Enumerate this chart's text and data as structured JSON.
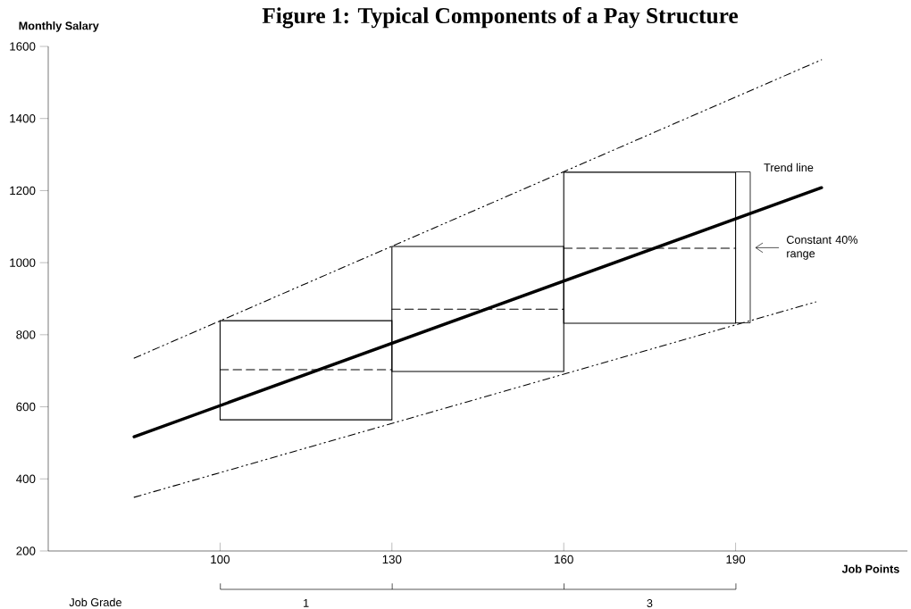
{
  "chart_data": {
    "type": "bar",
    "title": "Figure 1: Typical Components of a Pay Structure",
    "xlabel": "Job Points",
    "ylabel": "Monthly Salary",
    "xlim": [
      70,
      220
    ],
    "ylim": [
      200,
      1600
    ],
    "xticks": [
      100,
      130,
      160,
      190
    ],
    "yticks": [
      200,
      400,
      600,
      800,
      1000,
      1200,
      1400,
      1600
    ],
    "series": [
      {
        "color": "#000000",
        "x": [
          115,
          145,
          175
        ],
        "base": [
          564,
          698,
          832
        ],
        "values": [
          275,
          347,
          419
        ]
      },
      {
        "type": "line",
        "line_style": "dashed",
        "color": "#000000",
        "x": [
          100,
          130
        ],
        "values": [
          703,
          703
        ]
      },
      {
        "type": "line",
        "line_style": "dashed",
        "color": "#000000",
        "x": [
          130,
          160
        ],
        "values": [
          871,
          871
        ]
      },
      {
        "type": "line",
        "line_style": "dashed",
        "color": "#000000",
        "x": [
          160,
          190
        ],
        "values": [
          1040,
          1040
        ]
      },
      {
        "type": "line",
        "name": "Trend line",
        "color": "#000000",
        "x": [
          85,
          205
        ],
        "values": [
          517,
          1208
        ]
      },
      {
        "type": "line",
        "line_style": "dotted",
        "color": "#000000",
        "x": [
          85,
          205
        ],
        "values": [
          735,
          1563
        ]
      },
      {
        "type": "line",
        "line_style": "dotted",
        "color": "#000000",
        "x": [
          85,
          204
        ],
        "values": [
          349,
          891
        ]
      }
    ],
    "annotations": [
      "Constant 40% range",
      "Job Grade",
      "1",
      "3"
    ]
  }
}
